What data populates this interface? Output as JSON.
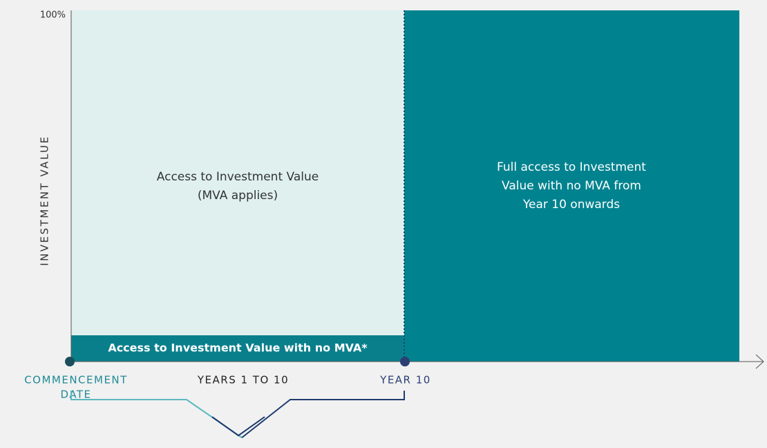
{
  "y_axis": {
    "label": "INVESTMENT VALUE",
    "top_label": "100%"
  },
  "x_axis": {
    "start_label": [
      "COMMENCEMENT",
      "DATE"
    ],
    "period_label": "YEARS 1 TO 10",
    "end_label": "YEAR 10"
  },
  "regions": {
    "mva_applies": [
      "Access to Investment Value",
      "(MVA applies)"
    ],
    "no_mva_strip": "Access to Investment Value with no MVA*",
    "full_access": [
      "Full access to Investment",
      "Value with no MVA from",
      "Year 10 onwards"
    ]
  }
}
